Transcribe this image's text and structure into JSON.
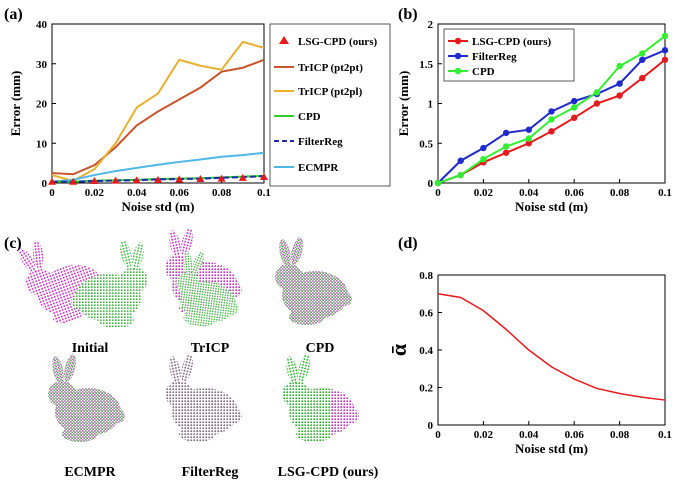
{
  "chart_data": [
    {
      "panel": "(a)",
      "type": "line",
      "xlabel": "Noise std (m)",
      "ylabel": "Error (mm)",
      "xlim": [
        0,
        0.1
      ],
      "ylim": [
        0,
        40
      ],
      "xticks": [
        0,
        0.02,
        0.04,
        0.06,
        0.08,
        0.1
      ],
      "xtick_labels": [
        "0",
        "0.02",
        "0.04",
        "0.06",
        "0.08",
        "0.1"
      ],
      "yticks": [
        0,
        10,
        20,
        30,
        40
      ],
      "ytick_labels": [
        "0",
        "10",
        "20",
        "30",
        "40"
      ],
      "grid": false,
      "legend_position": "right-outside",
      "x": [
        0,
        0.01,
        0.02,
        0.03,
        0.04,
        0.05,
        0.06,
        0.07,
        0.08,
        0.09,
        0.1
      ],
      "series": [
        {
          "name": "LSG-CPD (ours)",
          "color": "#e41a1c",
          "style": "triangle-markers",
          "values": [
            0.3,
            0.3,
            0.5,
            0.6,
            0.7,
            0.8,
            0.9,
            1.0,
            1.1,
            1.3,
            1.5
          ]
        },
        {
          "name": "TrICP (pt2pt)",
          "color": "#c8542b",
          "style": "solid",
          "values": [
            2.5,
            2.2,
            4.5,
            9.0,
            14.5,
            18.0,
            21.0,
            24.0,
            28.0,
            29.0,
            31.0
          ]
        },
        {
          "name": "TrICP (pt2pl)",
          "color": "#e7b02f",
          "style": "solid",
          "values": [
            2.0,
            0.5,
            3.5,
            10.0,
            19.0,
            22.5,
            31.0,
            29.5,
            28.5,
            35.5,
            34.0
          ]
        },
        {
          "name": "CPD",
          "color": "#33cc33",
          "style": "solid",
          "values": [
            0.3,
            0.3,
            0.6,
            0.7,
            0.8,
            1.0,
            1.1,
            1.2,
            1.4,
            1.6,
            1.8
          ]
        },
        {
          "name": "FilterReg",
          "color": "#1f2aa6",
          "style": "dashed",
          "values": [
            0.3,
            0.3,
            0.5,
            0.6,
            0.7,
            0.9,
            1.0,
            1.1,
            1.3,
            1.5,
            1.7
          ]
        },
        {
          "name": "ECMPR",
          "color": "#4fb7e8",
          "style": "solid",
          "values": [
            0.3,
            0.8,
            2.0,
            3.0,
            3.8,
            4.6,
            5.3,
            5.9,
            6.6,
            7.0,
            7.6
          ]
        }
      ]
    },
    {
      "panel": "(b)",
      "type": "line",
      "xlabel": "Noise std (m)",
      "ylabel": "Error (mm)",
      "xlim": [
        0,
        0.1
      ],
      "ylim": [
        0,
        2
      ],
      "xticks": [
        0,
        0.02,
        0.04,
        0.06,
        0.08,
        0.1
      ],
      "xtick_labels": [
        "0",
        "0.02",
        "0.04",
        "0.06",
        "0.08",
        "0.1"
      ],
      "yticks": [
        0,
        0.5,
        1,
        1.5,
        2
      ],
      "ytick_labels": [
        "0",
        "0.5",
        "1",
        "1.5",
        "2"
      ],
      "grid": false,
      "legend_position": "top-left",
      "x": [
        0,
        0.01,
        0.02,
        0.03,
        0.04,
        0.05,
        0.06,
        0.07,
        0.08,
        0.09,
        0.1
      ],
      "series": [
        {
          "name": "LSG-CPD (ours)",
          "color": "#e41a1c",
          "values": [
            0,
            0.1,
            0.26,
            0.38,
            0.5,
            0.65,
            0.82,
            1.0,
            1.1,
            1.32,
            1.55
          ]
        },
        {
          "name": "FilterReg",
          "color": "#1f2acc",
          "values": [
            0,
            0.28,
            0.44,
            0.63,
            0.67,
            0.9,
            1.03,
            1.12,
            1.25,
            1.55,
            1.67
          ]
        },
        {
          "name": "CPD",
          "color": "#33ee33",
          "values": [
            0,
            0.1,
            0.3,
            0.46,
            0.56,
            0.8,
            0.95,
            1.14,
            1.47,
            1.63,
            1.85
          ]
        }
      ]
    },
    {
      "panel": "(d)",
      "type": "line",
      "xlabel": "Noise std (m)",
      "ylabel": "ᾱ",
      "xlim": [
        0,
        0.1
      ],
      "ylim": [
        0,
        0.8
      ],
      "xticks": [
        0,
        0.02,
        0.04,
        0.06,
        0.08,
        0.1
      ],
      "xtick_labels": [
        "0",
        "0.02",
        "0.04",
        "0.06",
        "0.08",
        "0.1"
      ],
      "yticks": [
        0,
        0.2,
        0.4,
        0.6,
        0.8
      ],
      "ytick_labels": [
        "0",
        "0.2",
        "0.4",
        "0.6",
        "0.8"
      ],
      "grid": false,
      "x": [
        0,
        0.01,
        0.02,
        0.03,
        0.04,
        0.05,
        0.06,
        0.07,
        0.08,
        0.09,
        0.1
      ],
      "series": [
        {
          "color": "#e41a1c",
          "values": [
            0.7,
            0.68,
            0.61,
            0.51,
            0.4,
            0.31,
            0.245,
            0.195,
            0.168,
            0.148,
            0.133
          ]
        }
      ]
    }
  ],
  "panel_c": {
    "label": "(c)",
    "captions": [
      "Initial",
      "TrICP",
      "CPD",
      "ECMPR",
      "FilterReg",
      "LSG-CPD (ours)"
    ],
    "source_color": "#cc33cc",
    "target_color": "#33bb33"
  }
}
